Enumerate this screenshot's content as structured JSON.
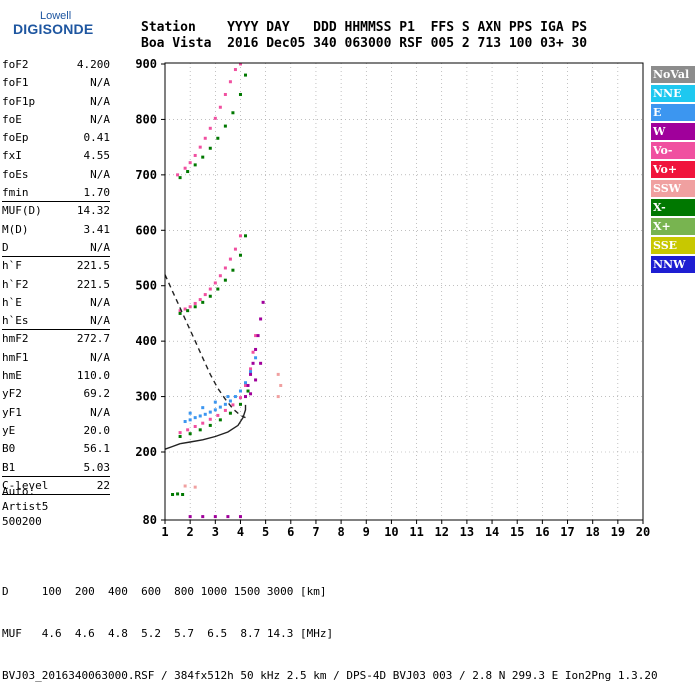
{
  "logo": {
    "line1": "Lowell",
    "line2": "DIGISONDE"
  },
  "header": {
    "line1": "Station    YYYY DAY   DDD HHMMSS P1  FFS S AXN PPS IGA PS",
    "line2": "Boa Vista  2016 Dec05 340 063000 RSF 005 2 713 100 03+ 30"
  },
  "params": [
    {
      "name": "foF2",
      "value": "4.200"
    },
    {
      "name": "foF1",
      "value": "N/A"
    },
    {
      "name": "foF1p",
      "value": "N/A"
    },
    {
      "name": "foE",
      "value": "N/A"
    },
    {
      "name": "foEp",
      "value": "0.41"
    },
    {
      "name": "fxI",
      "value": "4.55"
    },
    {
      "name": "foEs",
      "value": "N/A"
    },
    {
      "name": "fmin",
      "value": "1.70",
      "sep": true
    },
    {
      "name": "MUF(D)",
      "value": "14.32"
    },
    {
      "name": "M(D)",
      "value": "3.41"
    },
    {
      "name": "D",
      "value": "N/A",
      "sep": true
    },
    {
      "name": "h`F",
      "value": "221.5"
    },
    {
      "name": "h`F2",
      "value": "221.5"
    },
    {
      "name": "h`E",
      "value": "N/A"
    },
    {
      "name": "h`Es",
      "value": "N/A",
      "sep": true
    },
    {
      "name": "hmF2",
      "value": "272.7"
    },
    {
      "name": "hmF1",
      "value": "N/A"
    },
    {
      "name": "hmE",
      "value": "110.0"
    },
    {
      "name": "yF2",
      "value": "69.2"
    },
    {
      "name": "yF1",
      "value": "N/A"
    },
    {
      "name": "yE",
      "value": "20.0"
    },
    {
      "name": "B0",
      "value": "56.1"
    },
    {
      "name": "B1",
      "value": "5.03",
      "sep": true
    },
    {
      "name": "C-level",
      "value": "22",
      "sep": true
    }
  ],
  "auto": {
    "line1": "Auto:",
    "line2": "Artist5",
    "line3": "500200"
  },
  "legend": [
    {
      "label": "NoVal",
      "color": "#8c8c8c"
    },
    {
      "label": "NNE",
      "color": "#1ec8f0"
    },
    {
      "label": "E",
      "color": "#3c96f0"
    },
    {
      "label": "W",
      "color": "#a0009b"
    },
    {
      "label": "Vo-",
      "color": "#f050a0"
    },
    {
      "label": "Vo+",
      "color": "#f0143c"
    },
    {
      "label": "SSW",
      "color": "#f0a0a0"
    },
    {
      "label": "X-",
      "color": "#007800"
    },
    {
      "label": "X+",
      "color": "#78b450"
    },
    {
      "label": "SSE",
      "color": "#c8c800"
    },
    {
      "label": "NNW",
      "color": "#1e1ed2"
    }
  ],
  "footer": {
    "line1": "D     100  200  400  600  800 1000 1500 3000 [km]",
    "line2": "MUF   4.6  4.6  4.8  5.2  5.7  6.5  8.7 14.3 [MHz]",
    "line3": "BVJ03_2016340063000.RSF / 384fx512h 50 kHz 2.5 km / DPS-4D BVJ03 003 / 2.8 N 299.3 E Ion2Png 1.3.20"
  },
  "chart_data": {
    "type": "scatter",
    "xlim": [
      1,
      20
    ],
    "ylim": [
      80,
      900
    ],
    "xticks": [
      "1",
      "2",
      "3",
      "4",
      "5",
      "6",
      "7",
      "8",
      "9",
      "10",
      "11",
      "12",
      "13",
      "14",
      "15",
      "16",
      "17",
      "18",
      "19",
      "20"
    ],
    "yticks": [
      "80",
      "200",
      "300",
      "400",
      "500",
      "600",
      "700",
      "800",
      "900"
    ],
    "grid": true,
    "series": [
      {
        "color": "#f050a0",
        "points": [
          [
            1.6,
            455
          ],
          [
            1.8,
            458
          ],
          [
            2.0,
            462
          ],
          [
            2.2,
            468
          ],
          [
            2.4,
            475
          ],
          [
            2.6,
            484
          ],
          [
            2.8,
            494
          ],
          [
            3.0,
            505
          ],
          [
            3.2,
            518
          ],
          [
            3.4,
            532
          ],
          [
            3.6,
            548
          ],
          [
            3.8,
            566
          ],
          [
            4.0,
            590
          ],
          [
            1.5,
            700
          ],
          [
            1.8,
            712
          ],
          [
            2.0,
            722
          ],
          [
            2.2,
            735
          ],
          [
            2.4,
            750
          ],
          [
            2.6,
            766
          ],
          [
            2.8,
            784
          ],
          [
            3.0,
            802
          ],
          [
            3.2,
            822
          ],
          [
            3.4,
            845
          ],
          [
            3.6,
            868
          ],
          [
            3.8,
            890
          ],
          [
            4.0,
            900
          ],
          [
            1.6,
            235
          ],
          [
            1.9,
            240
          ],
          [
            2.2,
            246
          ],
          [
            2.5,
            252
          ],
          [
            2.8,
            259
          ],
          [
            3.1,
            266
          ],
          [
            3.4,
            275
          ],
          [
            3.7,
            285
          ],
          [
            4.0,
            298
          ],
          [
            4.2,
            320
          ],
          [
            4.4,
            350
          ],
          [
            4.5,
            380
          ],
          [
            4.6,
            410
          ]
        ]
      },
      {
        "color": "#007800",
        "points": [
          [
            1.6,
            450
          ],
          [
            1.9,
            455
          ],
          [
            2.2,
            462
          ],
          [
            2.5,
            470
          ],
          [
            2.8,
            481
          ],
          [
            3.1,
            494
          ],
          [
            3.4,
            510
          ],
          [
            3.7,
            528
          ],
          [
            4.0,
            555
          ],
          [
            4.2,
            590
          ],
          [
            1.6,
            695
          ],
          [
            1.9,
            706
          ],
          [
            2.2,
            718
          ],
          [
            2.5,
            732
          ],
          [
            2.8,
            748
          ],
          [
            3.1,
            766
          ],
          [
            3.4,
            788
          ],
          [
            3.7,
            812
          ],
          [
            4.0,
            845
          ],
          [
            4.2,
            880
          ],
          [
            1.6,
            228
          ],
          [
            2.0,
            233
          ],
          [
            2.4,
            240
          ],
          [
            2.8,
            248
          ],
          [
            3.2,
            258
          ],
          [
            3.6,
            270
          ],
          [
            4.0,
            286
          ],
          [
            4.3,
            310
          ],
          [
            1.3,
            125
          ],
          [
            1.5,
            126
          ],
          [
            1.7,
            125
          ]
        ]
      },
      {
        "color": "#3c96f0",
        "points": [
          [
            1.8,
            255
          ],
          [
            2.0,
            258
          ],
          [
            2.2,
            262
          ],
          [
            2.4,
            265
          ],
          [
            2.6,
            268
          ],
          [
            2.8,
            272
          ],
          [
            3.0,
            276
          ],
          [
            3.2,
            281
          ],
          [
            3.4,
            286
          ],
          [
            3.6,
            292
          ],
          [
            3.8,
            300
          ],
          [
            4.0,
            310
          ],
          [
            4.2,
            325
          ],
          [
            4.4,
            345
          ],
          [
            4.6,
            370
          ],
          [
            2.0,
            270
          ],
          [
            2.5,
            280
          ],
          [
            3.0,
            290
          ],
          [
            3.5,
            300
          ]
        ]
      },
      {
        "color": "#a0009b",
        "points": [
          [
            4.2,
            300
          ],
          [
            4.3,
            320
          ],
          [
            4.4,
            340
          ],
          [
            4.5,
            360
          ],
          [
            4.6,
            385
          ],
          [
            4.7,
            410
          ],
          [
            4.8,
            440
          ],
          [
            4.9,
            470
          ],
          [
            4.4,
            305
          ],
          [
            4.6,
            330
          ],
          [
            4.8,
            360
          ],
          [
            2.0,
            86
          ],
          [
            2.5,
            86
          ],
          [
            3.0,
            86
          ],
          [
            3.5,
            86
          ],
          [
            4.0,
            86
          ]
        ]
      },
      {
        "color": "#f0a0a0",
        "points": [
          [
            5.5,
            300
          ],
          [
            5.6,
            320
          ],
          [
            5.5,
            340
          ],
          [
            1.8,
            140
          ],
          [
            2.2,
            138
          ]
        ]
      }
    ],
    "curves": [
      {
        "style": "solid",
        "points": [
          [
            1.6,
            215
          ],
          [
            2.0,
            218
          ],
          [
            2.5,
            222
          ],
          [
            3.0,
            228
          ],
          [
            3.5,
            236
          ],
          [
            3.9,
            248
          ],
          [
            4.1,
            262
          ],
          [
            4.2,
            276
          ],
          [
            4.2,
            285
          ]
        ]
      },
      {
        "style": "dashed",
        "points": [
          [
            1.0,
            520
          ],
          [
            1.3,
            490
          ],
          [
            1.6,
            460
          ],
          [
            1.9,
            430
          ],
          [
            2.2,
            400
          ],
          [
            2.5,
            370
          ],
          [
            2.8,
            340
          ],
          [
            3.1,
            315
          ],
          [
            3.4,
            295
          ],
          [
            3.7,
            278
          ],
          [
            4.0,
            266
          ],
          [
            4.2,
            262
          ]
        ]
      },
      {
        "style": "solid",
        "points": [
          [
            1.0,
            205
          ],
          [
            1.3,
            210
          ],
          [
            1.6,
            215
          ]
        ]
      }
    ]
  }
}
